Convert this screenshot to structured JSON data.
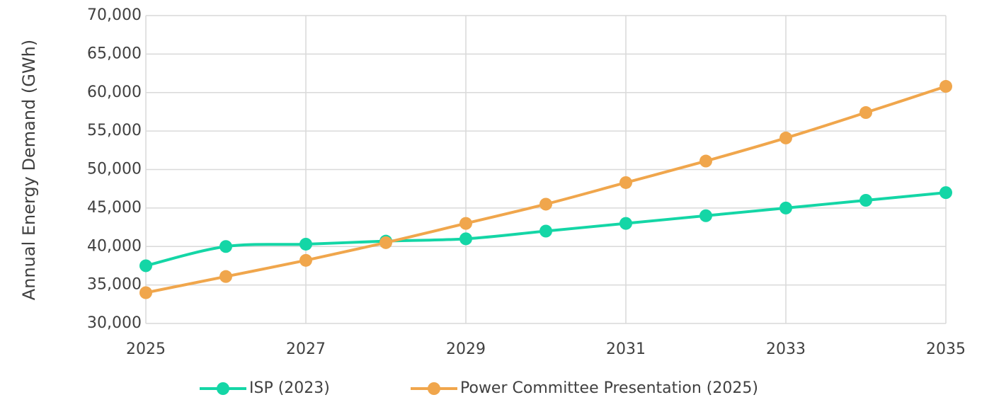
{
  "chart_data": {
    "type": "line",
    "y_label": "Annual Energy Demand (GWh)",
    "x": [
      2025,
      2026,
      2027,
      2028,
      2029,
      2030,
      2031,
      2032,
      2033,
      2034,
      2035
    ],
    "series": [
      {
        "name": "ISP (2023)",
        "color": "#14d6a6",
        "values": [
          37500,
          40000,
          40300,
          40700,
          41000,
          42000,
          43000,
          44000,
          45000,
          46000,
          47000
        ]
      },
      {
        "name": "Power Committee Presentation (2025)",
        "color": "#f0a64c",
        "values": [
          34000,
          36100,
          38200,
          40500,
          43000,
          45500,
          48300,
          51100,
          54100,
          57400,
          60800
        ]
      }
    ],
    "xlim": [
      2025,
      2035
    ],
    "xticks": [
      2025,
      2027,
      2029,
      2031,
      2033,
      2035
    ],
    "ylim": [
      30000,
      70000
    ],
    "yticks": [
      {
        "value": 30000,
        "label": "30,000"
      },
      {
        "value": 35000,
        "label": "35,000"
      },
      {
        "value": 40000,
        "label": "40,000"
      },
      {
        "value": 45000,
        "label": "45,000"
      },
      {
        "value": 50000,
        "label": "50,000"
      },
      {
        "value": 55000,
        "label": "55,000"
      },
      {
        "value": 60000,
        "label": "60,000"
      },
      {
        "value": 65000,
        "label": "65,000"
      },
      {
        "value": 70000,
        "label": "70,000"
      }
    ],
    "grid": true,
    "smooth": true,
    "legend": "bottom"
  }
}
